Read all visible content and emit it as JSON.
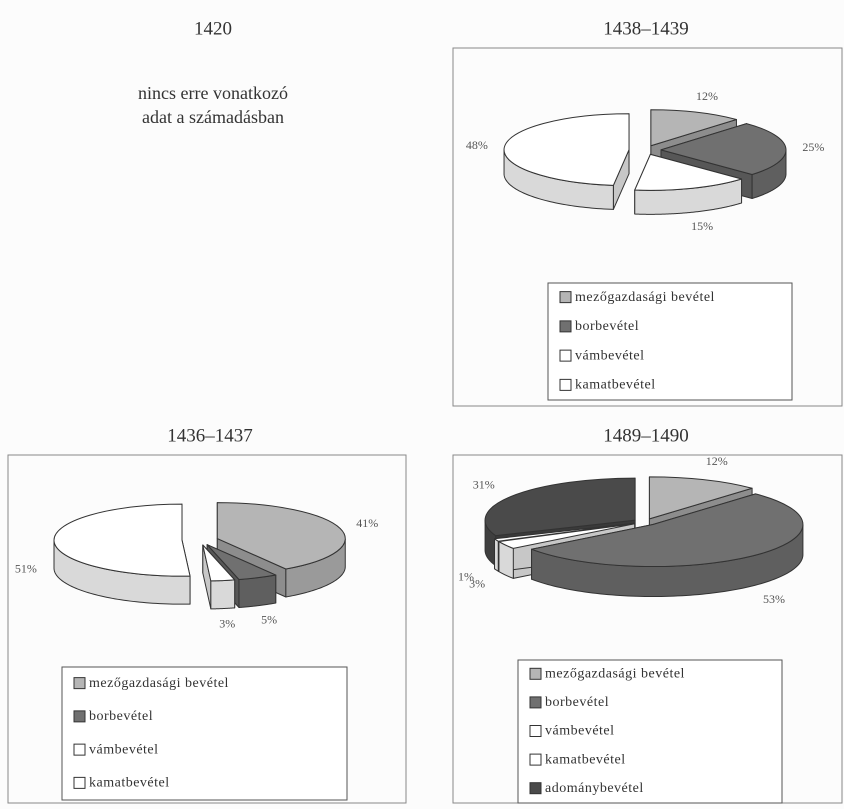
{
  "chart_data": [
    {
      "type": "note",
      "title": "1420",
      "annotation": [
        "nincs erre vonatkozó",
        "adat a számadásban"
      ]
    },
    {
      "type": "pie",
      "title": "1438–1439",
      "categories": [
        "mezőgazdasági bevétel",
        "borbevétel",
        "vámbevétel",
        "kamatbevétel"
      ],
      "values": [
        12,
        25,
        15,
        48
      ],
      "value_labels": [
        "12%",
        "25%",
        "15%",
        "48%"
      ],
      "colors": [
        "#b5b5b5",
        "#707070",
        "#ffffff",
        "#ffffff"
      ]
    },
    {
      "type": "pie",
      "title": "1436–1437",
      "categories": [
        "mezőgazdasági bevétel",
        "borbevétel",
        "vámbevétel",
        "kamatbevétel"
      ],
      "values": [
        41,
        5,
        3,
        51
      ],
      "value_labels": [
        "41%",
        "5%",
        "3%",
        "51%"
      ],
      "colors": [
        "#b5b5b5",
        "#707070",
        "#ffffff",
        "#ffffff"
      ]
    },
    {
      "type": "pie",
      "title": "1489–1490",
      "categories": [
        "mezőgazdasági bevétel",
        "borbevétel",
        "vámbevétel",
        "kamatbevétel",
        "adománybevétel"
      ],
      "values": [
        12,
        53,
        3,
        1,
        31
      ],
      "value_labels": [
        "12%",
        "53%",
        "3%",
        "1%",
        "31%"
      ],
      "colors": [
        "#b5b5b5",
        "#707070",
        "#ffffff",
        "#ffffff",
        "#4a4a4a"
      ]
    }
  ]
}
